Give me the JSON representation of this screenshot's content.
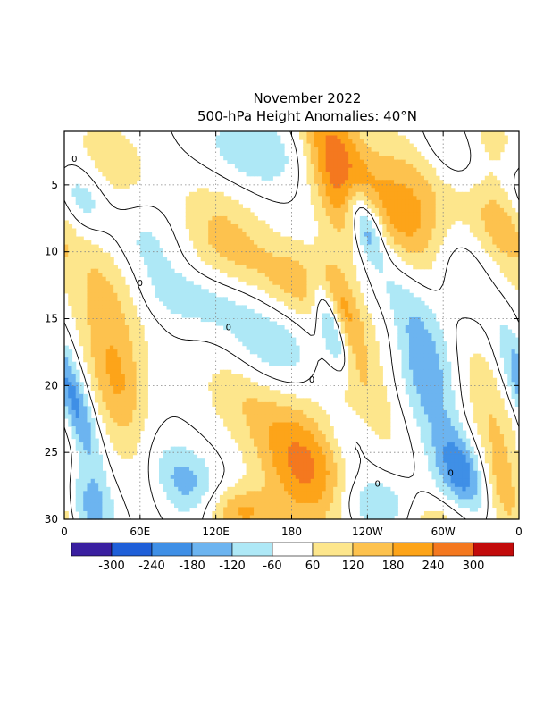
{
  "chart_data": {
    "type": "heatmap",
    "title": "November 2022",
    "subtitle": "500-hPa Height Anomalies: 40°N",
    "xlabel": "",
    "ylabel": "",
    "x_ticks": [
      "0",
      "60E",
      "120E",
      "180",
      "120W",
      "60W",
      "0"
    ],
    "x_tick_values": [
      0,
      60,
      120,
      180,
      240,
      300,
      360
    ],
    "y_ticks": [
      "5",
      "10",
      "15",
      "20",
      "25",
      "30"
    ],
    "y_tick_values": [
      5,
      10,
      15,
      20,
      25,
      30
    ],
    "xlim": [
      0,
      360
    ],
    "ylim": [
      1,
      30
    ],
    "grid": true,
    "contour_label": "0",
    "colorbar": {
      "colors": [
        "#3a1fa0",
        "#1f5fd8",
        "#3f8fe6",
        "#6cb4f0",
        "#aee8f6",
        "#ffffff",
        "#fde68c",
        "#fdc24e",
        "#fda419",
        "#f4781f",
        "#c20b0b"
      ],
      "labels": [
        "-300",
        "-240",
        "-180",
        "-120",
        "-60",
        "60",
        "120",
        "180",
        "240",
        "300"
      ],
      "bounds": [
        -300,
        -240,
        -180,
        -120,
        -60,
        60,
        120,
        180,
        240,
        300
      ]
    },
    "features": [
      {
        "lon": 215,
        "day": 3.5,
        "value": 260,
        "sx": 16,
        "sy": 4.5
      },
      {
        "lon": 222,
        "day": 15,
        "value": 140,
        "sx": 10,
        "sy": 2.5
      },
      {
        "lon": 278,
        "day": 8.5,
        "value": 260,
        "sx": 32,
        "sy": 4.5
      },
      {
        "lon": 255,
        "day": 16,
        "value": 120,
        "sx": 14,
        "sy": 3
      },
      {
        "lon": 188,
        "day": 12.5,
        "value": 160,
        "sx": 28,
        "sy": 2.2
      },
      {
        "lon": 125,
        "day": 9,
        "value": 140,
        "sx": 26,
        "sy": 3.2
      },
      {
        "lon": 190,
        "day": 26,
        "value": 260,
        "sx": 25,
        "sy": 3.5
      },
      {
        "lon": 240,
        "day": 21,
        "value": 150,
        "sx": 24,
        "sy": 4
      },
      {
        "lon": 140,
        "day": 20,
        "value": 120,
        "sx": 24,
        "sy": 2.8
      },
      {
        "lon": 138,
        "day": 29.5,
        "value": 190,
        "sx": 22,
        "sy": 1.4
      },
      {
        "lon": 45,
        "day": 21,
        "value": 200,
        "sx": 16,
        "sy": 4.5
      },
      {
        "lon": 35,
        "day": 12,
        "value": 130,
        "sx": 20,
        "sy": 4
      },
      {
        "lon": 40,
        "day": 4,
        "value": 120,
        "sx": 22,
        "sy": 3
      },
      {
        "lon": 330,
        "day": 21,
        "value": 160,
        "sx": 20,
        "sy": 4
      },
      {
        "lon": 345,
        "day": 8,
        "value": 130,
        "sx": 14,
        "sy": 2.5
      },
      {
        "lon": 350,
        "day": 28,
        "value": 170,
        "sx": 12,
        "sy": 2.5
      },
      {
        "lon": 330,
        "day": 1.5,
        "value": 110,
        "sx": 18,
        "sy": 2
      },
      {
        "lon": 290,
        "day": 30,
        "value": 110,
        "sx": 25,
        "sy": 1.3
      },
      {
        "lon": 238,
        "day": 8,
        "value": -320,
        "sx": 9,
        "sy": 2
      },
      {
        "lon": 211,
        "day": 15.5,
        "value": -250,
        "sx": 7,
        "sy": 2.5
      },
      {
        "lon": 282,
        "day": 18,
        "value": -240,
        "sx": 26,
        "sy": 4.5
      },
      {
        "lon": 255,
        "day": 12,
        "value": -120,
        "sx": 22,
        "sy": 2.5
      },
      {
        "lon": 310,
        "day": 11,
        "value": -180,
        "sx": 18,
        "sy": 3
      },
      {
        "lon": 160,
        "day": 17,
        "value": -160,
        "sx": 28,
        "sy": 2.8
      },
      {
        "lon": 150,
        "day": 2.5,
        "value": -120,
        "sx": 28,
        "sy": 2
      },
      {
        "lon": 60,
        "day": 9,
        "value": -120,
        "sx": 24,
        "sy": 3
      },
      {
        "lon": 15,
        "day": 6,
        "value": -140,
        "sx": 14,
        "sy": 2
      },
      {
        "lon": 12,
        "day": 22,
        "value": -180,
        "sx": 8,
        "sy": 3.5
      },
      {
        "lon": 18,
        "day": 29,
        "value": -160,
        "sx": 14,
        "sy": 2
      },
      {
        "lon": 98,
        "day": 27.5,
        "value": -160,
        "sx": 18,
        "sy": 2
      },
      {
        "lon": 315,
        "day": 26.5,
        "value": -220,
        "sx": 14,
        "sy": 2.2
      },
      {
        "lon": 248,
        "day": 29,
        "value": -180,
        "sx": 22,
        "sy": 1.6
      },
      {
        "lon": 228,
        "day": 24,
        "value": -120,
        "sx": 16,
        "sy": 2
      },
      {
        "lon": 310,
        "day": 2,
        "value": -130,
        "sx": 18,
        "sy": 2
      },
      {
        "lon": 62,
        "day": 24,
        "value": -80,
        "sx": 16,
        "sy": 2.5
      },
      {
        "lon": 355,
        "day": 19,
        "value": -110,
        "sx": 10,
        "sy": 3
      },
      {
        "lon": 108,
        "day": 13.5,
        "value": -90,
        "sx": 30,
        "sy": 1.5
      }
    ]
  }
}
